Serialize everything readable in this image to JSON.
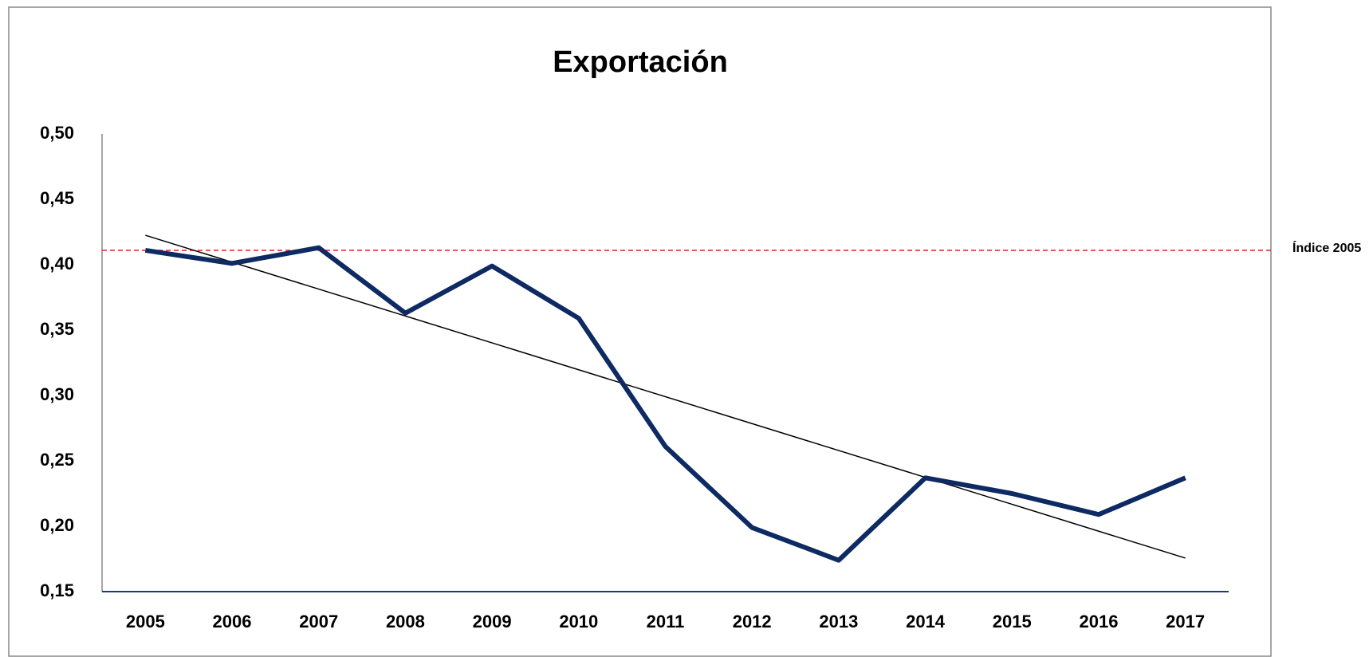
{
  "chart_data": {
    "type": "line",
    "title": "Exportación",
    "categories": [
      "2005",
      "2006",
      "2007",
      "2008",
      "2009",
      "2010",
      "2011",
      "2012",
      "2013",
      "2014",
      "2015",
      "2016",
      "2017"
    ],
    "series": [
      {
        "name": "Exportación",
        "color": "#0e2a63",
        "values": [
          0.411,
          0.401,
          0.413,
          0.363,
          0.399,
          0.359,
          0.261,
          0.199,
          0.174,
          0.237,
          0.225,
          0.209,
          0.237
        ]
      }
    ],
    "trendline": true,
    "reference_line": {
      "label": "Índice 2005",
      "value": 0.411,
      "color": "#e02020"
    },
    "ylim": [
      0.15,
      0.5
    ],
    "yticks": [
      {
        "value": 0.15,
        "label": "0,15"
      },
      {
        "value": 0.2,
        "label": "0,20"
      },
      {
        "value": 0.25,
        "label": "0,25"
      },
      {
        "value": 0.3,
        "label": "0,30"
      },
      {
        "value": 0.35,
        "label": "0,35"
      },
      {
        "value": 0.4,
        "label": "0,40"
      },
      {
        "value": 0.45,
        "label": "0,45"
      },
      {
        "value": 0.5,
        "label": "0,50"
      }
    ],
    "grid": false
  }
}
